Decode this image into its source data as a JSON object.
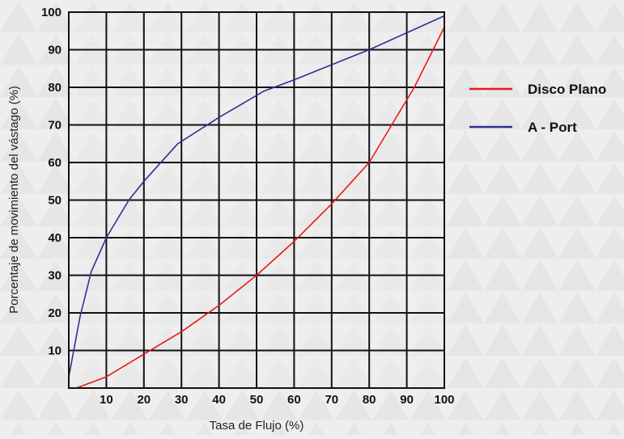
{
  "chart_data": {
    "type": "line",
    "title": "",
    "xlabel": "Tasa de Flujo (%)",
    "ylabel": "Porcentaje de movimiento del vástago (%)",
    "xlim": [
      0,
      100
    ],
    "ylim": [
      0,
      100
    ],
    "x_ticks": [
      10,
      20,
      30,
      40,
      50,
      60,
      70,
      80,
      90,
      100
    ],
    "y_ticks": [
      10,
      20,
      30,
      40,
      50,
      60,
      70,
      80,
      90,
      100
    ],
    "grid": true,
    "legend_position": "right",
    "series": [
      {
        "name": "Disco Plano",
        "color": "#e8191b",
        "x": [
          2,
          10,
          20,
          30,
          40,
          50,
          60,
          70,
          80,
          86,
          92,
          100
        ],
        "y": [
          0,
          3,
          9,
          15,
          22,
          30,
          39,
          49,
          60,
          70,
          80,
          96
        ]
      },
      {
        "name": "A - Port",
        "color": "#2e3192",
        "x": [
          0,
          3,
          6,
          10,
          16,
          20,
          29,
          40,
          52,
          60,
          75,
          80,
          100
        ],
        "y": [
          3,
          19,
          31,
          40,
          50,
          55,
          65,
          72,
          79,
          82,
          88,
          90,
          99
        ]
      }
    ]
  }
}
